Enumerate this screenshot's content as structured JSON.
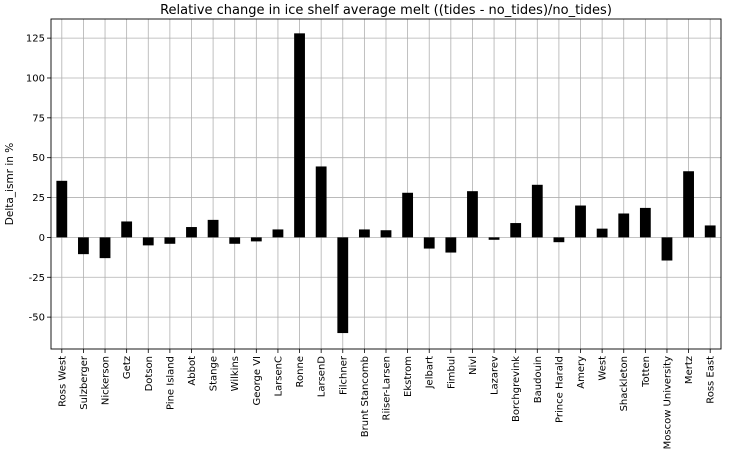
{
  "chart_data": {
    "type": "bar",
    "title": "Relative change in ice shelf average melt ((tides - no_tides)/no_tides)",
    "xlabel": "",
    "ylabel": "Delta_ismr in %",
    "ylim": [
      -70,
      137
    ],
    "yticks": [
      -50,
      -25,
      0,
      25,
      50,
      75,
      100,
      125
    ],
    "grid": true,
    "bar_color": "#000000",
    "categories": [
      "Ross West",
      "Sulzberger",
      "Nickerson",
      "Getz",
      "Dotson",
      "Pine Island",
      "Abbot",
      "Stange",
      "Wilkins",
      "George VI",
      "LarsenC",
      "Ronne",
      "LarsenD",
      "Filchner",
      "Brunt Stancomb",
      "Riiser-Larsen",
      "Ekstrom",
      "Jelbart",
      "Fimbul",
      "Nivl",
      "Lazarev",
      "Borchgrevink",
      "Baudouin",
      "Prince Harald",
      "Amery",
      "West",
      "Shackleton",
      "Totten",
      "Moscow University",
      "Mertz",
      "Ross East"
    ],
    "values": [
      35.5,
      -10.5,
      -13,
      10,
      -5,
      -4,
      6.5,
      11,
      -4,
      -2.5,
      5,
      128,
      44.5,
      -60,
      5,
      4.5,
      28,
      -7,
      -9.5,
      29,
      -1.5,
      9,
      33,
      -3,
      20,
      5.5,
      15,
      18.5,
      -14.5,
      41.5,
      7.5
    ]
  }
}
